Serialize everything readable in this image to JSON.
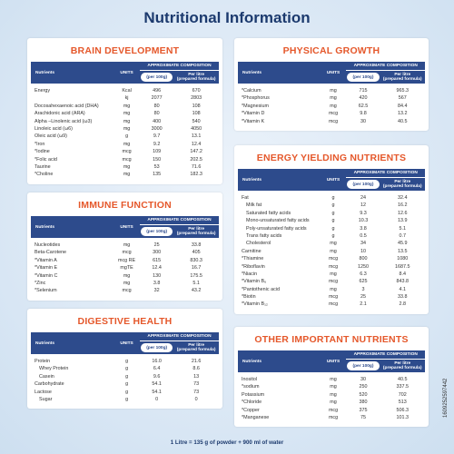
{
  "header": {
    "title": "Nutritional Information"
  },
  "sections": [
    {
      "title": "BRAIN DEVELOPMENT",
      "columns": {
        "nutrients": "Nutrients",
        "units": "UNITS",
        "approx": "APPROXIMATE COMPOSITION",
        "per_100g": "(per 100g)",
        "per_litre": "Per litre",
        "per_litre_note": "(prepared formula)"
      },
      "rows": [
        [
          "Energy",
          "Kcal",
          "496",
          "670"
        ],
        [
          "",
          "kj",
          "2077",
          "2803"
        ],
        [
          "Docosahexaenoic acid (DHA)",
          "mg",
          "80",
          "108"
        ],
        [
          "Arachidonic acid (ARA)",
          "mg",
          "80",
          "108"
        ],
        [
          "Alpha –Linolenic acid (ω3)",
          "mg",
          "400",
          "540"
        ],
        [
          "Linoleic acid (ω6)",
          "mg",
          "3000",
          "4050"
        ],
        [
          "Oleic acid (ω9)",
          "g",
          "9.7",
          "13.1"
        ],
        [
          "*Iron",
          "mg",
          "9.2",
          "12.4"
        ],
        [
          "*Iodine",
          "mcg",
          "109",
          "147.2"
        ],
        [
          "*Folic acid",
          "mcg",
          "150",
          "202.5"
        ],
        [
          "Taurine",
          "mg",
          "53",
          "71.6"
        ],
        [
          "*Choline",
          "mg",
          "135",
          "182.3"
        ]
      ]
    },
    {
      "title": "IMMUNE FUNCTION",
      "columns": {
        "nutrients": "Nutrients",
        "units": "UNITS",
        "approx": "APPROXIMATE COMPOSITION",
        "per_100g": "(per 100g)",
        "per_litre": "Per litre",
        "per_litre_note": "(prepared formula)"
      },
      "rows": [
        [
          "Nucleotides",
          "mg",
          "25",
          "33.8"
        ],
        [
          "Beta-Carotene",
          "mcg",
          "300",
          "405"
        ],
        [
          "*Vitamin A",
          "mcg RE",
          "615",
          "830.3"
        ],
        [
          "*Vitamin E",
          "mgTE",
          "12.4",
          "16.7"
        ],
        [
          "*Vitamin C",
          "mg",
          "130",
          "175.5"
        ],
        [
          "*Zinc",
          "mg",
          "3.8",
          "5.1"
        ],
        [
          "*Selenium",
          "mcg",
          "32",
          "43.2"
        ]
      ]
    },
    {
      "title": "DIGESTIVE HEALTH",
      "columns": {
        "nutrients": "Nutrients",
        "units": "UNITS",
        "approx": "APPROXIMATE COMPOSITION",
        "per_100g": "(per 100g)",
        "per_litre": "Per litre",
        "per_litre_note": "(prepared formula)"
      },
      "rows": [
        [
          "Protein",
          "g",
          "16.0",
          "21.6"
        ],
        [
          "Whey Protein",
          "g",
          "6.4",
          "8.6"
        ],
        [
          "Casein",
          "g",
          "9.6",
          "13"
        ],
        [
          "Carbohydrate",
          "g",
          "54.1",
          "73"
        ],
        [
          "Lactose",
          "g",
          "54.1",
          "73"
        ],
        [
          "Sugar",
          "g",
          "0",
          "0"
        ]
      ]
    },
    {
      "title": "PHYSICAL GROWTH",
      "columns": {
        "nutrients": "Nutrients",
        "units": "UNITS",
        "approx": "APPROXIMATE COMPOSITION",
        "per_100g": "(per 100g)",
        "per_litre": "Per litre",
        "per_litre_note": "(prepared formula)"
      },
      "rows": [
        [
          "*Calcium",
          "mg",
          "715",
          "965.3"
        ],
        [
          "*Phosphorus",
          "mg",
          "420",
          "567"
        ],
        [
          "*Magnesium",
          "mg",
          "62.5",
          "84.4"
        ],
        [
          "*Vitamin D",
          "mcg",
          "9.8",
          "13.2"
        ],
        [
          "*Vitamin K",
          "mcg",
          "30",
          "40.5"
        ]
      ]
    },
    {
      "title": "ENERGY YIELDING NUTRIENTS",
      "columns": {
        "nutrients": "Nutrients",
        "units": "UNITS",
        "approx": "APPROXIMATE COMPOSITION",
        "per_100g": "(per 100g)",
        "per_litre": "Per litre",
        "per_litre_note": "(prepared formula)"
      },
      "rows": [
        [
          "Fat",
          "g",
          "24",
          "32.4"
        ],
        [
          "Milk fat",
          "g",
          "12",
          "16.2"
        ],
        [
          "Saturated fatty acids",
          "g",
          "9.3",
          "12.6"
        ],
        [
          "Mono-unsaturated fatty acids",
          "g",
          "10.3",
          "13.9"
        ],
        [
          "Poly-unsaturated fatty acids",
          "g",
          "3.8",
          "5.1"
        ],
        [
          "Trans fatty acids",
          "g",
          "0.5",
          "0.7"
        ],
        [
          "Cholesterol",
          "mg",
          "34",
          "45.9"
        ],
        [
          "Carnitine",
          "mg",
          "10",
          "13.5"
        ],
        [
          "*Thiamine",
          "mcg",
          "800",
          "1080"
        ],
        [
          "*Riboflavin",
          "mcg",
          "1250",
          "1687.5"
        ],
        [
          "*Niacin",
          "mg",
          "6.3",
          "8.4"
        ],
        [
          "*Vitamin B₆",
          "mcg",
          "625",
          "843.8"
        ],
        [
          "*Pantothenic acid",
          "mg",
          "3",
          "4.1"
        ],
        [
          "*Biotin",
          "mcg",
          "25",
          "33.8"
        ],
        [
          "*Vitamin B₁₂",
          "mcg",
          "2.1",
          "2.8"
        ]
      ]
    },
    {
      "title": "OTHER IMPORTANT NUTRIENTS",
      "columns": {
        "nutrients": "Nutrients",
        "units": "UNITS",
        "approx": "APPROXIMATE COMPOSITION",
        "per_100g": "(per 100g)",
        "per_litre": "Per litre",
        "per_litre_note": "(prepared formula)"
      },
      "rows": [
        [
          "Inositol",
          "mg",
          "30",
          "40.5"
        ],
        [
          "*sodium",
          "mg",
          "250",
          "337.5"
        ],
        [
          "Potassium",
          "mg",
          "520",
          "702"
        ],
        [
          "*Chloride",
          "mg",
          "380",
          "513"
        ],
        [
          "*Copper",
          "mcg",
          "375",
          "506.3"
        ],
        [
          "*Manganese",
          "mcg",
          "75",
          "101.3"
        ]
      ]
    }
  ],
  "footer": {
    "note": "1 Litre = 135 g of powder + 900 ml of water",
    "code": "1609252597442"
  }
}
